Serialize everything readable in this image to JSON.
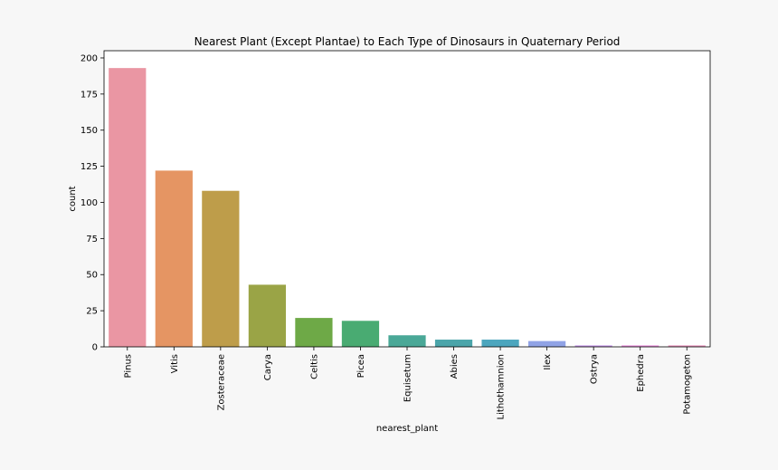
{
  "chart_data": {
    "type": "bar",
    "title": "Nearest Plant (Except Plantae) to Each Type of Dinosaurs in Quaternary Period",
    "xlabel": "nearest_plant",
    "ylabel": "count",
    "categories": [
      "Pinus",
      "Vitis",
      "Zosteraceae",
      "Carya",
      "Celtis",
      "Picea",
      "Equisetum",
      "Abies",
      "Lithothamnion",
      "Ilex",
      "Ostrya",
      "Ephedra",
      "Potamogeton"
    ],
    "values": [
      193,
      122,
      108,
      43,
      20,
      18,
      8,
      5,
      5,
      4,
      1,
      1,
      1
    ],
    "colors": [
      "#ea96a3",
      "#e59563",
      "#be9d4a",
      "#9aa446",
      "#6ea947",
      "#49ab72",
      "#4aa897",
      "#4ba5aa",
      "#4ca6be",
      "#90a3e6",
      "#c698ea",
      "#e98fdb",
      "#e994bd"
    ],
    "ylim": [
      0,
      205
    ],
    "yticks": [
      0,
      25,
      50,
      75,
      100,
      125,
      150,
      175,
      200
    ],
    "grid": false,
    "legend": "none"
  }
}
